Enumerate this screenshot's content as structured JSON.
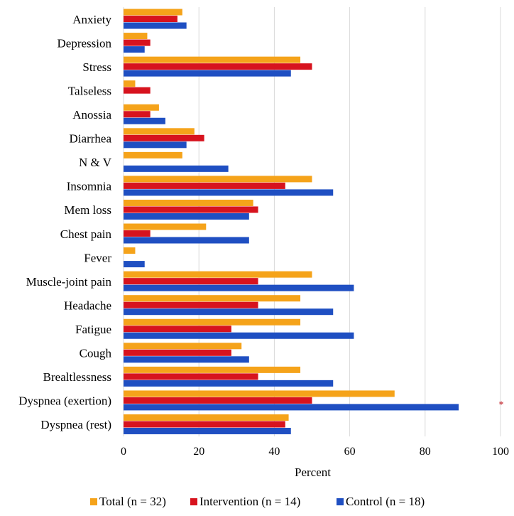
{
  "chart_data": {
    "type": "bar",
    "orientation": "horizontal",
    "title": "",
    "xlabel": "Percent",
    "ylabel": "",
    "xlim": [
      0,
      100
    ],
    "xticks": [
      0,
      20,
      40,
      60,
      80,
      100
    ],
    "grid": true,
    "legend_position": "bottom",
    "categories": [
      "Anxiety",
      "Depression",
      "Stress",
      "Talseless",
      "Anossia",
      "Diarrhea",
      "N & V",
      "Insomnia",
      "Mem loss",
      "Chest pain",
      "Fever",
      "Muscle-joint pain",
      "Headache",
      "Fatigue",
      "Cough",
      "Brealtlessness",
      "Dyspnea (exertion)",
      "Dyspnea (rest)"
    ],
    "series": [
      {
        "name": "Total (n = 32)",
        "color": "#F5A31A",
        "values": [
          15.6,
          6.3,
          46.9,
          3.1,
          9.4,
          18.8,
          15.6,
          50.0,
          34.4,
          21.9,
          3.1,
          50.0,
          46.9,
          46.9,
          31.3,
          46.9,
          71.9,
          43.8
        ]
      },
      {
        "name": "Intervention (n = 14)",
        "color": "#D7131E",
        "values": [
          14.3,
          7.1,
          50.0,
          7.1,
          7.1,
          21.4,
          0,
          42.9,
          35.7,
          7.1,
          0,
          35.7,
          35.7,
          28.6,
          28.6,
          35.7,
          50.0,
          42.9
        ]
      },
      {
        "name": "Control (n = 18)",
        "color": "#1F4FC2",
        "values": [
          16.7,
          5.6,
          44.4,
          0,
          11.1,
          16.7,
          27.8,
          55.6,
          33.3,
          33.3,
          5.6,
          61.1,
          55.6,
          61.1,
          33.3,
          55.6,
          88.9,
          44.4
        ]
      }
    ],
    "annotations": [
      {
        "category": "Dyspnea (exertion)",
        "text": "*",
        "color": "#C0141C"
      }
    ]
  }
}
